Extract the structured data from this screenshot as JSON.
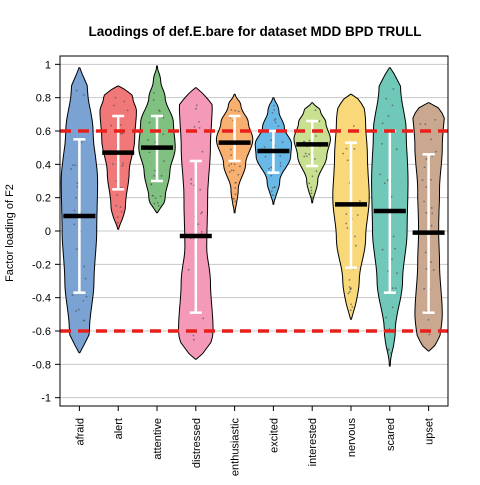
{
  "chart_data": {
    "type": "violin",
    "title": "Laodings of def.E.bare for dataset MDD BPD TRULL",
    "ylabel": "Factor loading of F2",
    "xlabel": "",
    "ylim": [
      -1.05,
      1.05
    ],
    "yticks": [
      "-1",
      "-0.8",
      "-0.6",
      "-0.4",
      "-0.2",
      "0",
      "0.2",
      "0.4",
      "0.6",
      "0.8",
      "1"
    ],
    "yticks_values": [
      -1,
      -0.8,
      -0.6,
      -0.4,
      -0.2,
      0,
      0.2,
      0.4,
      0.6,
      0.8,
      1
    ],
    "grid": true,
    "reference_lines": [
      {
        "value": 0.6,
        "color": "#e8201c",
        "style": "dashed"
      },
      {
        "value": -0.6,
        "color": "#e8201c",
        "style": "dashed"
      }
    ],
    "categories": [
      "afraid",
      "alert",
      "attentive",
      "distressed",
      "enthusiastic",
      "excited",
      "interested",
      "nervous",
      "scared",
      "upset"
    ],
    "series": [
      {
        "category": "afraid",
        "color": "#7aa2d2",
        "min": -0.73,
        "max": 0.98,
        "median": 0.09,
        "q_low": -0.37,
        "q_high": 0.55,
        "profile": [
          [
            -0.73,
            0.3
          ],
          [
            -0.6,
            0.55
          ],
          [
            -0.3,
            0.8
          ],
          [
            0.0,
            0.95
          ],
          [
            0.3,
            1.0
          ],
          [
            0.6,
            0.75
          ],
          [
            0.85,
            0.45
          ],
          [
            0.98,
            0.2
          ]
        ]
      },
      {
        "category": "alert",
        "color": "#f07878",
        "min": 0.01,
        "max": 0.87,
        "median": 0.47,
        "q_low": 0.25,
        "q_high": 0.69,
        "profile": [
          [
            0.01,
            0.1
          ],
          [
            0.15,
            0.4
          ],
          [
            0.35,
            0.6
          ],
          [
            0.55,
            0.9
          ],
          [
            0.72,
            1.0
          ],
          [
            0.8,
            0.8
          ],
          [
            0.87,
            0.5
          ]
        ]
      },
      {
        "category": "attentive",
        "color": "#80c080",
        "min": 0.11,
        "max": 0.99,
        "median": 0.5,
        "q_low": 0.3,
        "q_high": 0.69,
        "profile": [
          [
            0.11,
            0.2
          ],
          [
            0.2,
            0.45
          ],
          [
            0.35,
            0.7
          ],
          [
            0.5,
            1.0
          ],
          [
            0.65,
            0.9
          ],
          [
            0.8,
            0.45
          ],
          [
            0.9,
            0.2
          ],
          [
            0.99,
            0.05
          ]
        ]
      },
      {
        "category": "distressed",
        "color": "#f49ab8",
        "min": -0.77,
        "max": 0.86,
        "median": -0.03,
        "q_low": -0.49,
        "q_high": 0.42,
        "profile": [
          [
            -0.77,
            0.6
          ],
          [
            -0.6,
            0.95
          ],
          [
            -0.3,
            0.8
          ],
          [
            -0.1,
            0.6
          ],
          [
            0.2,
            0.65
          ],
          [
            0.5,
            0.8
          ],
          [
            0.75,
            0.9
          ],
          [
            0.86,
            0.55
          ]
        ]
      },
      {
        "category": "enthusiastic",
        "color": "#f8b070",
        "min": 0.11,
        "max": 0.82,
        "median": 0.53,
        "q_low": 0.42,
        "q_high": 0.69,
        "profile": [
          [
            0.11,
            0.05
          ],
          [
            0.25,
            0.2
          ],
          [
            0.4,
            0.6
          ],
          [
            0.55,
            1.0
          ],
          [
            0.65,
            0.75
          ],
          [
            0.75,
            0.35
          ],
          [
            0.82,
            0.1
          ]
        ]
      },
      {
        "category": "excited",
        "color": "#68b8e8",
        "min": 0.16,
        "max": 0.8,
        "median": 0.48,
        "q_low": 0.35,
        "q_high": 0.6,
        "profile": [
          [
            0.16,
            0.05
          ],
          [
            0.3,
            0.35
          ],
          [
            0.45,
            0.95
          ],
          [
            0.52,
            1.0
          ],
          [
            0.62,
            0.6
          ],
          [
            0.72,
            0.3
          ],
          [
            0.8,
            0.1
          ]
        ]
      },
      {
        "category": "interested",
        "color": "#c8e090",
        "min": 0.17,
        "max": 0.77,
        "median": 0.52,
        "q_low": 0.39,
        "q_high": 0.66,
        "profile": [
          [
            0.17,
            0.05
          ],
          [
            0.3,
            0.3
          ],
          [
            0.45,
            0.8
          ],
          [
            0.55,
            1.0
          ],
          [
            0.65,
            0.75
          ],
          [
            0.72,
            0.45
          ],
          [
            0.77,
            0.15
          ]
        ]
      },
      {
        "category": "nervous",
        "color": "#f8d878",
        "min": -0.53,
        "max": 0.82,
        "median": 0.16,
        "q_low": -0.22,
        "q_high": 0.53,
        "profile": [
          [
            -0.53,
            0.15
          ],
          [
            -0.3,
            0.45
          ],
          [
            -0.05,
            0.8
          ],
          [
            0.2,
            1.0
          ],
          [
            0.45,
            0.9
          ],
          [
            0.65,
            0.8
          ],
          [
            0.82,
            0.65
          ]
        ]
      },
      {
        "category": "scared",
        "color": "#70c8b8",
        "min": -0.81,
        "max": 0.98,
        "median": 0.12,
        "q_low": -0.37,
        "q_high": 0.6,
        "profile": [
          [
            -0.81,
            0.05
          ],
          [
            -0.6,
            0.3
          ],
          [
            -0.3,
            0.7
          ],
          [
            0.0,
            0.95
          ],
          [
            0.3,
            1.0
          ],
          [
            0.6,
            0.9
          ],
          [
            0.85,
            0.6
          ],
          [
            0.98,
            0.35
          ]
        ]
      },
      {
        "category": "upset",
        "color": "#caa890",
        "min": -0.72,
        "max": 0.77,
        "median": -0.01,
        "q_low": -0.49,
        "q_high": 0.46,
        "profile": [
          [
            -0.72,
            0.55
          ],
          [
            -0.5,
            0.75
          ],
          [
            -0.2,
            0.6
          ],
          [
            0.0,
            0.55
          ],
          [
            0.25,
            0.6
          ],
          [
            0.5,
            0.75
          ],
          [
            0.77,
            0.9
          ]
        ]
      }
    ]
  }
}
